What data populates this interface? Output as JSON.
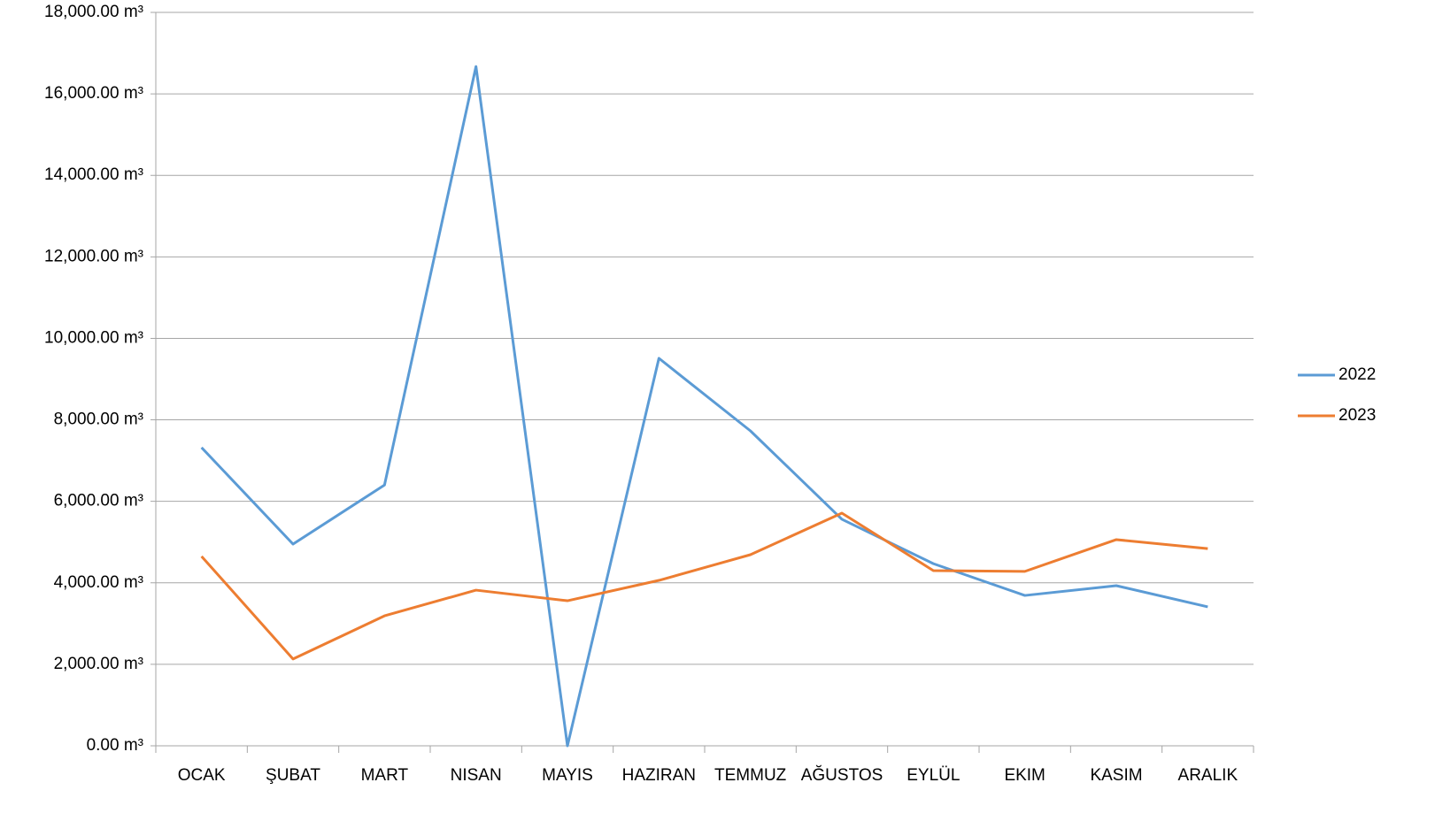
{
  "chart_data": {
    "type": "line",
    "categories": [
      "OCAK",
      "ŞUBAT",
      "MART",
      "NISAN",
      "MAYIS",
      "HAZIRAN",
      "TEMMUZ",
      "AĞUSTOS",
      "EYLÜL",
      "EKIM",
      "KASIM",
      "ARALIK"
    ],
    "series": [
      {
        "name": "2022",
        "color": "#5b9bd5",
        "values": [
          7320,
          4950,
          6400,
          16670,
          0,
          9510,
          7730,
          5560,
          4470,
          3690,
          3930,
          3410
        ]
      },
      {
        "name": "2023",
        "color": "#ed7d31",
        "values": [
          4650,
          2130,
          3190,
          3820,
          3560,
          4060,
          4690,
          5710,
          4300,
          4280,
          5060,
          4840
        ]
      }
    ],
    "ylim": [
      0,
      18000
    ],
    "yticks": [
      {
        "value": 0,
        "label": "0.00 m³"
      },
      {
        "value": 2000,
        "label": "2,000.00 m³"
      },
      {
        "value": 4000,
        "label": "4,000.00 m³"
      },
      {
        "value": 6000,
        "label": "6,000.00 m³"
      },
      {
        "value": 8000,
        "label": "8,000.00 m³"
      },
      {
        "value": 10000,
        "label": "10,000.00 m³"
      },
      {
        "value": 12000,
        "label": "12,000.00 m³"
      },
      {
        "value": 14000,
        "label": "14,000.00 m³"
      },
      {
        "value": 16000,
        "label": "16,000.00 m³"
      },
      {
        "value": 18000,
        "label": "18,000.00 m³"
      }
    ],
    "grid": true,
    "legend": "right"
  }
}
